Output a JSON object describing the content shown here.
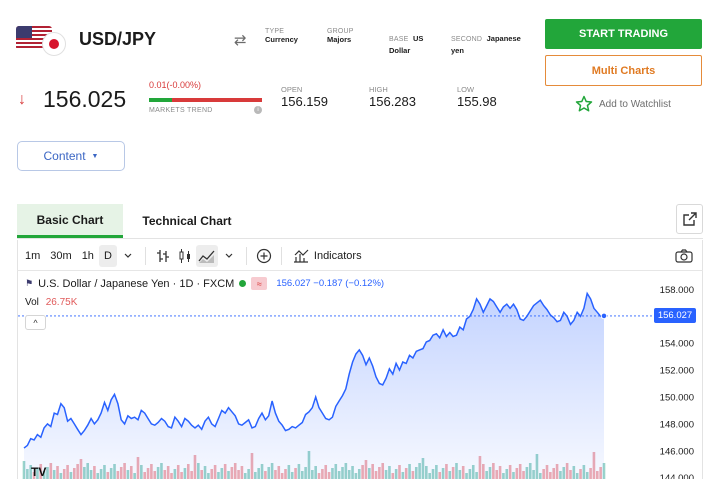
{
  "instrument": {
    "title": "USD/JPY",
    "meta": [
      {
        "label": "TYPE",
        "value": "Currency"
      },
      {
        "label": "GROUP",
        "value": "Majors"
      },
      {
        "label": "BASE",
        "value_inline": "US",
        "value": "Dollar"
      },
      {
        "label": "SECOND",
        "value_inline": "Japanese",
        "value": "yen"
      }
    ],
    "price": "156.025",
    "change": "0.01(-0.00%)",
    "trend_label": "MARKETS TREND",
    "trend_positive_fraction": 0.2,
    "stats": [
      {
        "label": "OPEN",
        "value": "156.159"
      },
      {
        "label": "HIGH",
        "value": "156.283"
      },
      {
        "label": "LOW",
        "value": "155.98"
      }
    ]
  },
  "actions": {
    "start_trading": "START TRADING",
    "multi_charts": "Multi Charts",
    "watchlist": "Add to Watchlist",
    "content": "Content"
  },
  "tabs": [
    {
      "label": "Basic Chart",
      "active": true
    },
    {
      "label": "Technical Chart",
      "active": false
    }
  ],
  "toolbar": {
    "intervals": [
      "1m",
      "30m",
      "1h",
      "D"
    ],
    "selected_interval": "D",
    "indicators": "Indicators"
  },
  "legend": {
    "symbol": "U.S. Dollar / Japanese Yen · 1D · FXCM",
    "badge": "≈",
    "values": "156.027  −0.187 (−0.12%)",
    "vol_label": "Vol",
    "vol_value": "26.75K",
    "collapse": "^",
    "last_price_tag": "156.027"
  },
  "colors": {
    "accent_green": "#22a63a",
    "accent_orange": "#e07a22",
    "line_blue": "#2962ff",
    "down_red": "#d83a3a",
    "vol_up": "#8fcfc4",
    "vol_down": "#f0a3a8"
  },
  "chart_data": {
    "type": "area",
    "y_ticks": [
      "158.000",
      "156.000",
      "154.000",
      "152.000",
      "150.000",
      "148.000",
      "146.000",
      "144.000"
    ],
    "ylim": [
      143.9,
      159.0
    ],
    "grid": false,
    "series": [
      {
        "values": [
          146.2,
          146.4,
          146.9,
          146.8,
          147.2,
          147.0,
          147.7,
          148.0,
          147.8,
          148.8,
          148.7,
          149.5,
          149.2,
          148.2,
          148.4,
          148.0,
          147.6,
          147.2,
          147.5,
          147.9,
          148.4,
          148.0,
          148.3,
          148.8,
          149.6,
          149.0,
          149.8,
          150.2,
          149.5,
          148.3,
          148.0,
          148.6,
          148.4,
          148.5,
          148.3,
          149.0,
          148.8,
          148.4,
          148.0,
          147.9,
          148.1,
          148.4,
          148.2,
          147.8,
          147.7,
          148.5,
          148.2,
          147.8,
          148.4,
          148.2,
          147.9,
          147.7,
          147.9,
          147.6,
          148.2,
          148.5,
          148.0,
          147.8,
          148.4,
          149.0,
          148.8,
          149.2,
          148.9,
          148.6,
          148.0,
          147.9,
          148.1,
          148.3,
          147.7,
          147.8,
          148.4,
          148.8,
          148.3,
          148.6,
          149.7,
          148.8,
          148.2,
          147.9,
          147.5,
          147.6,
          147.8,
          147.7,
          147.9,
          148.1,
          148.7,
          148.9,
          149.2,
          150.0,
          149.2,
          148.8,
          148.4,
          148.3,
          148.5,
          149.3,
          149.7,
          150.1,
          150.6,
          151.7,
          152.6,
          153.2,
          153.5,
          153.1,
          152.4,
          152.9,
          152.3,
          151.5,
          151.0,
          150.9,
          151.4,
          152.1,
          151.7,
          152.5,
          152.0,
          152.6,
          152.5,
          153.1,
          152.9,
          153.4,
          153.5,
          153.6,
          154.1,
          154.2,
          154.6,
          154.7,
          154.4,
          155.0,
          154.5,
          154.8,
          154.5,
          154.6,
          155.2,
          155.0,
          155.8,
          156.0,
          156.5,
          157.3,
          156.9,
          156.3,
          156.8,
          157.3,
          157.1,
          156.7,
          156.3,
          156.7,
          156.9,
          156.6,
          156.9,
          156.5,
          155.8,
          155.7,
          156.0,
          156.4,
          156.8,
          157.0,
          157.2,
          156.8,
          156.5,
          156.1,
          155.9,
          155.6,
          155.7,
          156.3,
          156.0,
          155.4,
          155.7,
          156.3,
          156.0,
          156.6,
          157.7,
          157.3,
          156.6,
          156.3,
          156.0,
          156.03
        ]
      }
    ]
  }
}
